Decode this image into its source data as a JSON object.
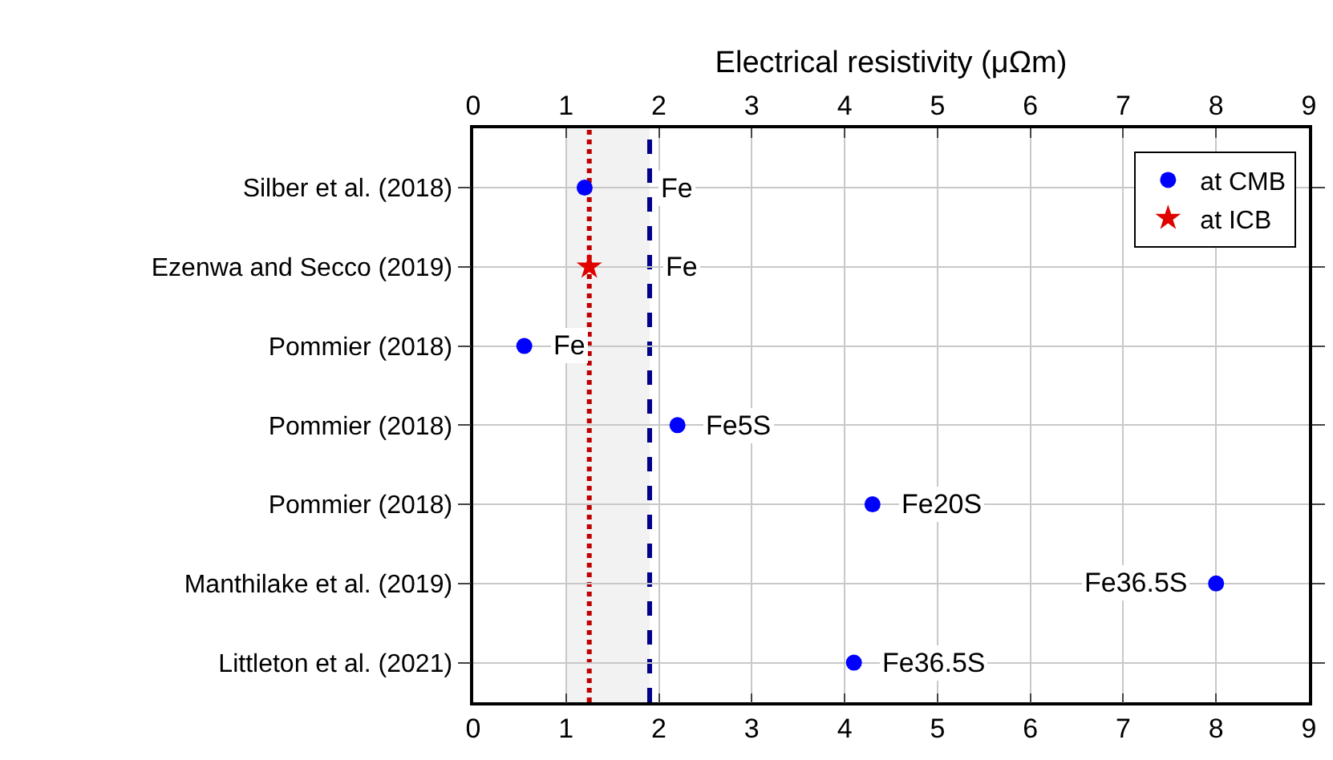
{
  "chart_data": {
    "type": "scatter",
    "x2label": "Electrical resistivity (μΩm)",
    "categories": [
      "Silber et al. (2018)",
      "Ezenwa and Secco (2019)",
      "Pommier (2018)",
      "Pommier (2018)",
      "Pommier (2018)",
      "Manthilake et al. (2019)",
      "Littleton et al. (2021)"
    ],
    "orientation": "horizontal",
    "series": [
      {
        "name": "at CMB",
        "color": "#0000ff",
        "marker": "circle",
        "values": [
          1.2,
          null,
          0.55,
          2.2,
          4.3,
          8.0,
          4.1
        ],
        "value_labels": [
          "Fe",
          null,
          "Fe",
          "Fe5S",
          "Fe20S",
          "Fe36.5S",
          "Fe36.5S"
        ]
      },
      {
        "name": "at ICB",
        "color": "#e00000",
        "marker": "star",
        "values": [
          null,
          1.25,
          null,
          null,
          null,
          null,
          null
        ],
        "value_labels": [
          null,
          "Fe",
          null,
          null,
          null,
          null,
          null
        ]
      }
    ],
    "xlim": [
      0,
      9
    ],
    "xticks": [
      0,
      1,
      2,
      3,
      4,
      5,
      6,
      7,
      8,
      9
    ],
    "x2lim": [
      0,
      9
    ],
    "x2ticks": [
      0,
      1,
      2,
      3,
      4,
      5,
      6,
      7,
      8,
      9
    ],
    "ref_lines": [
      {
        "axis": "x",
        "value": 1.25,
        "color": "#c00000",
        "line_style": "dotted"
      },
      {
        "axis": "x",
        "value": 1.9,
        "color": "#00008b",
        "line_style": "dashed"
      }
    ],
    "bands": [
      {
        "axis": "x",
        "from": 1.0,
        "to": 1.9,
        "color": "#f2f2f2"
      }
    ],
    "grid": true,
    "legend": "top right"
  }
}
